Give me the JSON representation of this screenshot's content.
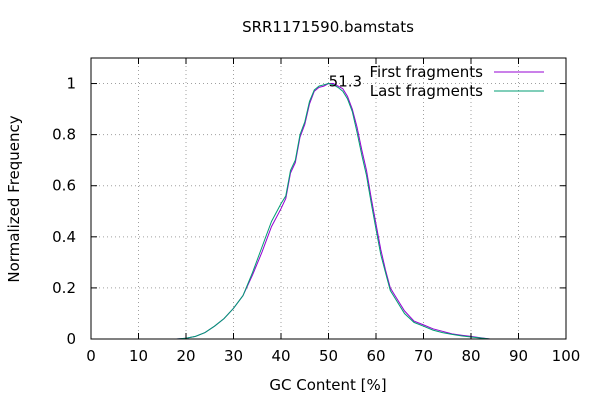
{
  "chart_data": {
    "type": "line",
    "title": "SRR1171590.bamstats",
    "xlabel": "GC Content [%]",
    "ylabel": "Normalized Frequency",
    "xlim": [
      0,
      100
    ],
    "ylim": [
      0,
      1.1
    ],
    "xticks": [
      0,
      10,
      20,
      30,
      40,
      50,
      60,
      70,
      80,
      90,
      100
    ],
    "yticks": [
      0,
      0.2,
      0.4,
      0.6,
      0.8,
      1
    ],
    "ytick_labels": [
      "0",
      "0.2",
      "0.4",
      "0.6",
      "0.8",
      "1"
    ],
    "grid": true,
    "legend_position": "top-right",
    "annotation": {
      "text": "51.3",
      "x": 51.3,
      "y": 1.0
    },
    "series": [
      {
        "name": "First fragments",
        "color": "#9400d3",
        "x": [
          18,
          20,
          22,
          24,
          26,
          28,
          30,
          32,
          34,
          36,
          38,
          40,
          41,
          42,
          43,
          44,
          45,
          46,
          47,
          48,
          49,
          50,
          51,
          52,
          53,
          54,
          55,
          56,
          57,
          58,
          59,
          60,
          61,
          62,
          63,
          64,
          66,
          68,
          70,
          72,
          74,
          76,
          78,
          80,
          82,
          84
        ],
        "y": [
          0.0,
          0.003,
          0.01,
          0.025,
          0.05,
          0.08,
          0.12,
          0.17,
          0.25,
          0.34,
          0.44,
          0.51,
          0.55,
          0.65,
          0.69,
          0.79,
          0.84,
          0.92,
          0.97,
          0.985,
          0.99,
          1.0,
          1.0,
          0.99,
          0.98,
          0.95,
          0.9,
          0.83,
          0.74,
          0.66,
          0.55,
          0.45,
          0.35,
          0.27,
          0.2,
          0.17,
          0.11,
          0.07,
          0.055,
          0.04,
          0.03,
          0.02,
          0.015,
          0.01,
          0.005,
          0.0
        ]
      },
      {
        "name": "Last fragments",
        "color": "#009e73",
        "x": [
          18,
          20,
          22,
          24,
          26,
          28,
          30,
          32,
          34,
          36,
          38,
          40,
          41,
          42,
          43,
          44,
          45,
          46,
          47,
          48,
          49,
          50,
          51,
          52,
          53,
          54,
          55,
          56,
          57,
          58,
          59,
          60,
          61,
          62,
          63,
          64,
          66,
          68,
          70,
          72,
          74,
          76,
          78,
          80,
          82,
          84
        ],
        "y": [
          0.0,
          0.003,
          0.01,
          0.025,
          0.05,
          0.08,
          0.12,
          0.17,
          0.26,
          0.36,
          0.46,
          0.53,
          0.56,
          0.66,
          0.7,
          0.8,
          0.85,
          0.93,
          0.975,
          0.99,
          0.995,
          1.0,
          0.995,
          0.985,
          0.97,
          0.94,
          0.89,
          0.81,
          0.72,
          0.64,
          0.53,
          0.43,
          0.33,
          0.26,
          0.19,
          0.16,
          0.1,
          0.065,
          0.05,
          0.035,
          0.025,
          0.018,
          0.012,
          0.008,
          0.004,
          0.0
        ]
      }
    ]
  }
}
